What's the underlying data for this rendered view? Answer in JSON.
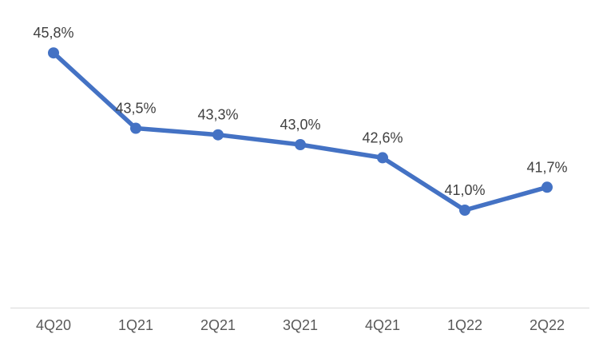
{
  "chart_data": {
    "type": "line",
    "title": "",
    "categories": [
      "4Q20",
      "1Q21",
      "2Q21",
      "3Q21",
      "4Q21",
      "1Q22",
      "2Q22"
    ],
    "values": [
      45.8,
      43.5,
      43.3,
      43.0,
      42.6,
      41.0,
      41.7
    ],
    "data_labels": [
      "45,8%",
      "43,5%",
      "43,3%",
      "43,0%",
      "42,6%",
      "41,0%",
      "41,7%"
    ],
    "xlabel": "",
    "ylabel": "",
    "ylim": [
      38,
      47.5
    ],
    "grid": false,
    "legend_position": "none",
    "marker": "circle",
    "colors": {
      "line": "#4472C4",
      "marker": "#4472C4",
      "data_label": "#404040",
      "axis_label": "#595959",
      "axis_line": "#D9D9D9",
      "background": "#FFFFFF"
    }
  }
}
